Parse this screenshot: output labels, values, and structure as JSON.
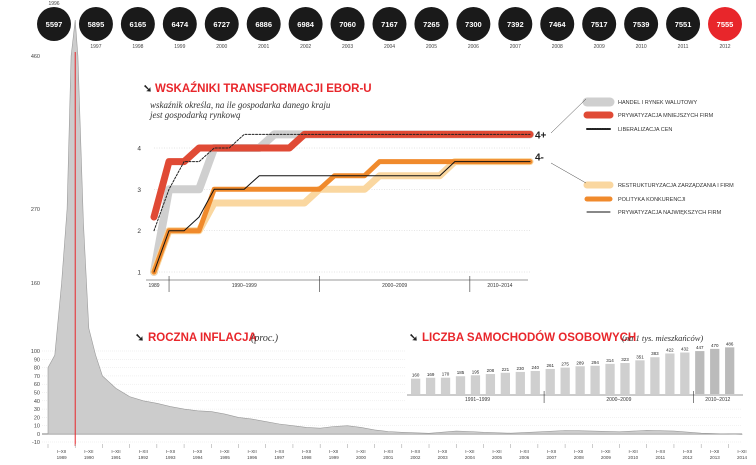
{
  "top_row": {
    "years": [
      "1996",
      "1997",
      "1998",
      "1999",
      "2000",
      "2001",
      "2002",
      "2003",
      "2004",
      "2005",
      "2006",
      "2007",
      "2008",
      "2009",
      "2010",
      "2011",
      "2012"
    ],
    "values": [
      "5597",
      "5895",
      "6165",
      "6474",
      "6727",
      "6886",
      "6984",
      "7060",
      "7167",
      "7265",
      "7300",
      "7392",
      "7464",
      "7517",
      "7539",
      "7551",
      "7555"
    ],
    "highlight_color": "#e8262b",
    "base_color": "#1a1a1a"
  },
  "ebor": {
    "title": "WSKAŹNIKI TRANSFORMACJI EBOR-U",
    "subtitle_line1": "wskaźnik określa, na ile gospodarka danego kraju",
    "subtitle_line2": "jest gospodarką rynkową",
    "end_label_top": "4+",
    "end_label_bottom": "4-",
    "period_labels": [
      "1989",
      "1990–1999",
      "2000–2009",
      "2010–2014"
    ],
    "legend_top": [
      "HANDEL I RYNEK WALUTOWY",
      "PRYWATYZACJA MNIEJSZYCH FIRM",
      "LIBERALIZACJA CEN"
    ],
    "legend_bottom": [
      "RESTRUKTURYZACJA ZARZĄDZANIA I FIRM",
      "POLITYKA KONKURENCJI",
      "PRYWATYZACJA NAJWIĘKSZYCH FIRM"
    ]
  },
  "inflation": {
    "title": "ROCZNA INFLACJA",
    "subtitle": "(proc.)",
    "left_axis": [
      "460",
      "270",
      "160",
      "100",
      "90",
      "80",
      "70",
      "60",
      "50",
      "40",
      "30",
      "20",
      "10",
      "0",
      "-10"
    ],
    "year_labels": [
      "1989",
      "1990",
      "1991",
      "1992",
      "1993",
      "1994",
      "1995",
      "1996",
      "1997",
      "1998",
      "1999",
      "2000",
      "2001",
      "2002",
      "2003",
      "2004",
      "2005",
      "2006",
      "2007",
      "2008",
      "2009",
      "2010",
      "2011",
      "2012",
      "2013",
      "2014"
    ],
    "month_prefix": "I–XII"
  },
  "cars": {
    "title": "LICZBA SAMOCHODÓW OSOBOWYCH",
    "subtitle": "(na 1 tys. mieszkańców)",
    "period_labels": [
      "1991–1999",
      "2000–2009",
      "2010–2012"
    ]
  },
  "chart_data": [
    {
      "type": "line",
      "title": "WSKAŹNIKI TRANSFORMACJI EBOR-U",
      "x": [
        1989,
        1990,
        1991,
        1992,
        1993,
        1994,
        1995,
        1996,
        1997,
        1998,
        1999,
        2000,
        2001,
        2002,
        2003,
        2004,
        2005,
        2006,
        2007,
        2008,
        2009,
        2010,
        2011,
        2012,
        2013,
        2014
      ],
      "ylim": [
        1,
        4.33
      ],
      "yticks": [
        1,
        2,
        3,
        4
      ],
      "series": [
        {
          "name": "HANDEL I RYNEK WALUTOWY",
          "color": "#cfcfcf",
          "values": [
            1,
            3,
            3,
            3,
            4,
            4,
            4,
            4,
            4.33,
            4.33,
            4.33,
            4.33,
            4.33,
            4.33,
            4.33,
            4.33,
            4.33,
            4.33,
            4.33,
            4.33,
            4.33,
            4.33,
            4.33,
            4.33,
            4.33,
            4.33
          ]
        },
        {
          "name": "PRYWATYZACJA MNIEJSZYCH FIRM",
          "color": "#e04a35",
          "values": [
            2.33,
            3.67,
            3.67,
            4,
            4,
            4,
            4,
            4,
            4,
            4,
            4.33,
            4.33,
            4.33,
            4.33,
            4.33,
            4.33,
            4.33,
            4.33,
            4.33,
            4.33,
            4.33,
            4.33,
            4.33,
            4.33,
            4.33,
            4.33
          ]
        },
        {
          "name": "LIBERALIZACJA CEN",
          "color": "#222222",
          "values": [
            2,
            3,
            3.67,
            3.67,
            4,
            4,
            4.33,
            4.33,
            4.33,
            4.33,
            4.33,
            4.33,
            4.33,
            4.33,
            4.33,
            4.33,
            4.33,
            4.33,
            4.33,
            4.33,
            4.33,
            4.33,
            4.33,
            4.33,
            4.33,
            4.33
          ]
        },
        {
          "name": "RESTRUKTURYZACJA ZARZĄDZANIA I FIRM",
          "color": "#fad7a0",
          "values": [
            1,
            2,
            2,
            2,
            2.67,
            2.67,
            2.67,
            2.67,
            2.67,
            2.67,
            2.67,
            3,
            3,
            3,
            3,
            3.33,
            3.33,
            3.33,
            3.33,
            3.33,
            3.67,
            3.67,
            3.67,
            3.67,
            3.67,
            3.67
          ]
        },
        {
          "name": "POLITYKA KONKURENCJI",
          "color": "#f08a2c",
          "values": [
            1,
            2,
            2,
            2,
            3,
            3,
            3,
            3,
            3,
            3,
            3,
            3,
            3.33,
            3.33,
            3.33,
            3.67,
            3.67,
            3.67,
            3.67,
            3.67,
            3.67,
            3.67,
            3.67,
            3.67,
            3.67,
            3.67
          ]
        },
        {
          "name": "PRYWATYZACJA NAJWIĘKSZYCH FIRM",
          "color": "#111111",
          "values": [
            1,
            2,
            2,
            2.33,
            3,
            3,
            3,
            3.33,
            3.33,
            3.33,
            3.33,
            3.33,
            3.33,
            3.33,
            3.33,
            3.33,
            3.33,
            3.33,
            3.33,
            3.33,
            3.67,
            3.67,
            3.67,
            3.67,
            3.67,
            3.67
          ]
        }
      ]
    },
    {
      "type": "area",
      "title": "ROCZNA INFLACJA (proc.)",
      "x": [
        1989.0,
        1989.25,
        1989.5,
        1989.7,
        1989.85,
        1990.0,
        1990.1,
        1990.3,
        1990.5,
        1990.75,
        1991.0,
        1991.5,
        1992.0,
        1992.5,
        1993.0,
        1993.5,
        1994.0,
        1994.5,
        1995.0,
        1995.5,
        1996.0,
        1996.5,
        1997.0,
        1997.5,
        1998.0,
        1998.5,
        1999.0,
        1999.5,
        2000.0,
        2000.5,
        2001.0,
        2001.5,
        2002.0,
        2003.0,
        2004.0,
        2004.5,
        2005.0,
        2006.0,
        2007.0,
        2008.0,
        2008.5,
        2009.0,
        2010.0,
        2011.0,
        2011.5,
        2012.0,
        2013.0,
        2014.0,
        2014.5
      ],
      "values": [
        80,
        95,
        160,
        270,
        460,
        600,
        460,
        250,
        120,
        95,
        70,
        55,
        45,
        40,
        37,
        33,
        30,
        28,
        27,
        24,
        20,
        18,
        15,
        12,
        10,
        8,
        7,
        9,
        10,
        8,
        5,
        3,
        2,
        0.8,
        3.5,
        3,
        2,
        1,
        2.5,
        4.2,
        4,
        3.5,
        2.6,
        4.3,
        4,
        3.5,
        1,
        0,
        -0.5
      ],
      "color": "#cccccc",
      "highlight_x": 1990.0,
      "ylabel": "proc."
    },
    {
      "type": "bar",
      "title": "LICZBA SAMOCHODÓW OSOBOWYCH (na 1 tys. mieszkańców)",
      "categories": [
        "1991",
        "1992",
        "1993",
        "1994",
        "1995",
        "1996",
        "1997",
        "1998",
        "1999",
        "2000",
        "2001",
        "2002",
        "2003",
        "2004",
        "2005",
        "2006",
        "2007",
        "2008",
        "2009",
        "2010",
        "2011",
        "2012"
      ],
      "values": [
        160,
        169,
        170,
        185,
        195,
        208,
        221,
        230,
        240,
        261,
        275,
        289,
        294,
        314,
        323,
        351,
        383,
        422,
        432,
        447,
        470,
        486
      ],
      "ylim": [
        0,
        500
      ],
      "color": "#cfcfcf",
      "highlight_color": "#bbbbbb"
    }
  ]
}
